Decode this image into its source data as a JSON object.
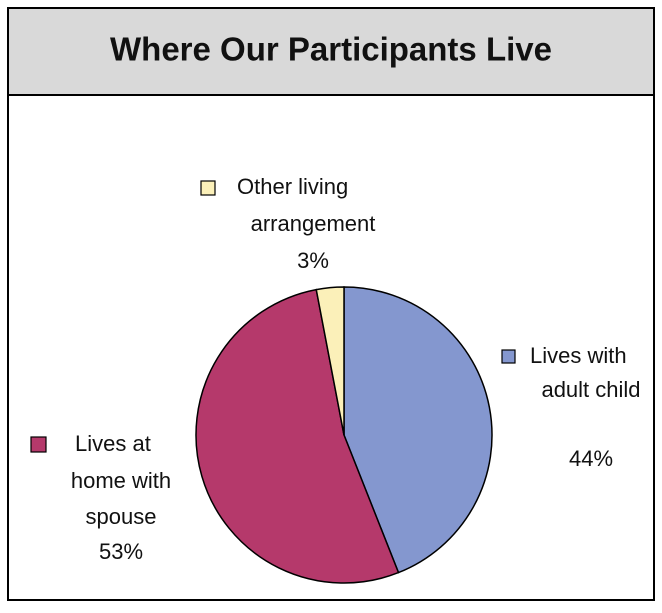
{
  "chart_data": {
    "type": "pie",
    "title": "Where Our Participants Live",
    "categories": [
      "Lives with adult child",
      "Lives at home with spouse",
      "Other living arrangement"
    ],
    "values": [
      44,
      53,
      3
    ],
    "value_labels": [
      "44%",
      "53%",
      "3%"
    ],
    "colors": [
      "#8497cf",
      "#b5396b",
      "#fbf0b9"
    ]
  }
}
